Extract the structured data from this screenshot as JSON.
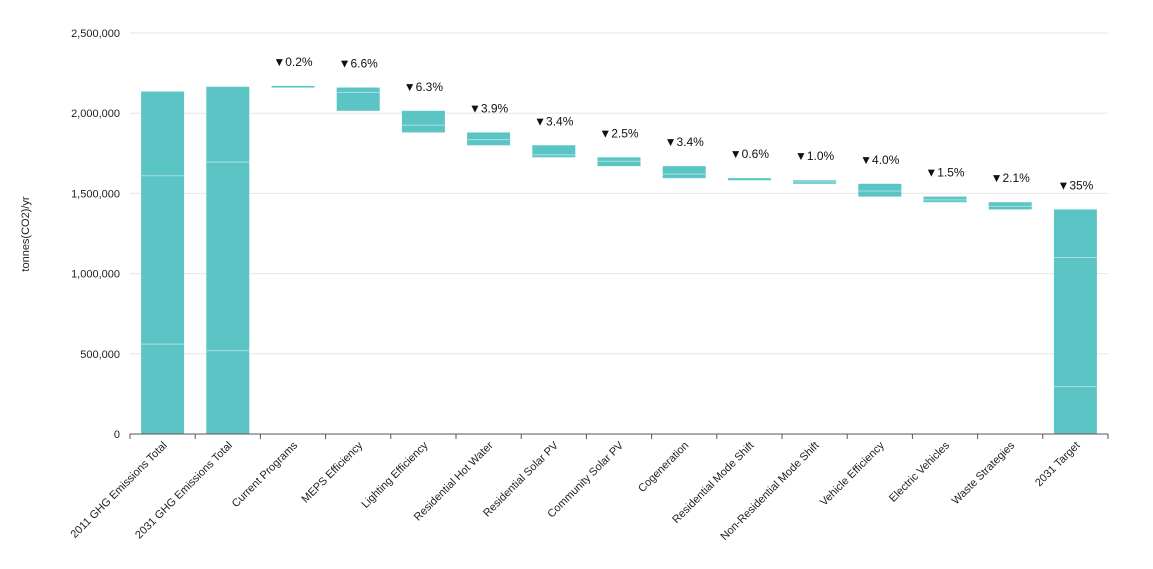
{
  "chart_data": {
    "type": "bar",
    "subtype": "waterfall",
    "title": "",
    "ylabel": "tonnes(CO2)/yr",
    "xlabel": "",
    "ylim": [
      0,
      2500000
    ],
    "yticks": [
      0,
      500000,
      1000000,
      1500000,
      2000000,
      2500000
    ],
    "ytick_labels": [
      "0",
      "500,000",
      "1,000,000",
      "1,500,000",
      "2,000,000",
      "2,500,000"
    ],
    "grid": true,
    "legend": "none",
    "colors": {
      "bar": "#5bc5c6",
      "segment_line": "#a8e0e1",
      "grid": "#e6e6e6",
      "axis": "#555555"
    },
    "categories": [
      "2011 GHG Emissions Total",
      "2031 GHG Emissions Total",
      "Current Programs",
      "MEPS Efficiency",
      "Lighting Efficiency",
      "Residential Hot Water",
      "Residential Solar PV",
      "Community Solar PV",
      "Cogeneration",
      "Residential Mode Shift",
      "Non-Residential Mode Shift",
      "Vehicle Efficiency",
      "Electric Vehicles",
      "Waste Strategies",
      "2031 Target"
    ],
    "bars": [
      {
        "bottom": 0,
        "top": 2135000,
        "segments": [
          560000,
          1610000
        ]
      },
      {
        "bottom": 0,
        "top": 2165000,
        "segments": [
          520000,
          1695000
        ]
      },
      {
        "bottom": 2160000,
        "top": 2170000,
        "segments": []
      },
      {
        "bottom": 2015000,
        "top": 2160000,
        "segments": [
          2130000
        ]
      },
      {
        "bottom": 1880000,
        "top": 2015000,
        "segments": [
          1925000
        ]
      },
      {
        "bottom": 1800000,
        "top": 1880000,
        "segments": [
          1835000
        ]
      },
      {
        "bottom": 1725000,
        "top": 1800000,
        "segments": [
          1740000
        ]
      },
      {
        "bottom": 1670000,
        "top": 1725000,
        "segments": [
          1700000
        ]
      },
      {
        "bottom": 1595000,
        "top": 1670000,
        "segments": [
          1620000
        ]
      },
      {
        "bottom": 1582000,
        "top": 1595000,
        "segments": []
      },
      {
        "bottom": 1560000,
        "top": 1582000,
        "segments": [
          1572000
        ]
      },
      {
        "bottom": 1480000,
        "top": 1560000,
        "segments": [
          1515000
        ]
      },
      {
        "bottom": 1445000,
        "top": 1480000,
        "segments": [
          1460000
        ]
      },
      {
        "bottom": 1400000,
        "top": 1445000,
        "segments": [
          1420000
        ]
      },
      {
        "bottom": 0,
        "top": 1400000,
        "segments": [
          295000,
          1100000
        ]
      }
    ],
    "data_labels": [
      "",
      "",
      "▼0.2%",
      "▼6.6%",
      "▼6.3%",
      "▼3.9%",
      "▼3.4%",
      "▼2.5%",
      "▼3.4%",
      "▼0.6%",
      "▼1.0%",
      "▼4.0%",
      "▼1.5%",
      "▼2.1%",
      "▼35%"
    ]
  }
}
